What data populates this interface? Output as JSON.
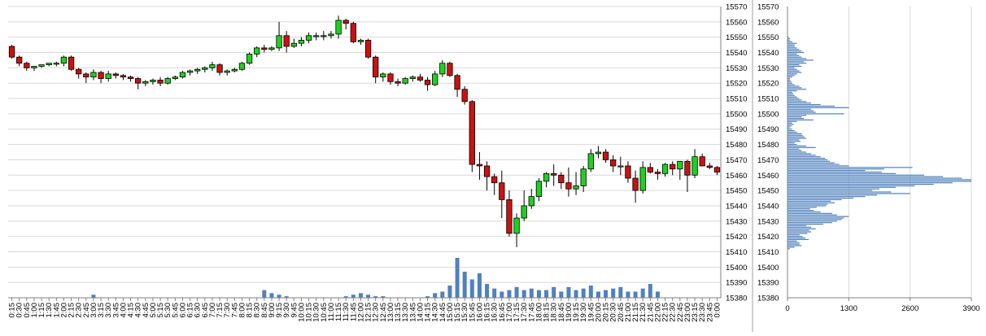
{
  "chart_data": [
    {
      "type": "candlestick",
      "title": "",
      "xlabel": "",
      "ylabel": "",
      "ylim": [
        15380,
        15570
      ],
      "y_ticks": [
        15380,
        15390,
        15400,
        15410,
        15420,
        15430,
        15440,
        15450,
        15460,
        15470,
        15480,
        15490,
        15500,
        15510,
        15520,
        15530,
        15540,
        15550,
        15560,
        15570
      ],
      "grid": true,
      "colors": {
        "up": "#1fd11f",
        "down": "#cc1111",
        "volume": "#4f81bd",
        "grid": "#d9d9d9"
      },
      "x": [
        "0:15",
        "0:30",
        "0:45",
        "1:00",
        "1:15",
        "1:30",
        "1:45",
        "2:00",
        "2:15",
        "2:30",
        "2:45",
        "3:00",
        "3:15",
        "3:30",
        "3:45",
        "4:00",
        "4:15",
        "4:30",
        "4:45",
        "5:00",
        "5:15",
        "5:30",
        "5:45",
        "6:00",
        "6:15",
        "6:30",
        "6:45",
        "7:00",
        "7:15",
        "7:30",
        "7:45",
        "8:00",
        "8:15",
        "8:30",
        "8:45",
        "9:00",
        "9:15",
        "9:30",
        "9:45",
        "10:00",
        "10:15",
        "10:30",
        "10:45",
        "11:00",
        "11:15",
        "11:30",
        "11:45",
        "12:00",
        "12:15",
        "12:30",
        "12:45",
        "13:00",
        "13:15",
        "13:30",
        "13:45",
        "14:00",
        "14:15",
        "14:30",
        "14:45",
        "15:00",
        "15:15",
        "15:30",
        "15:45",
        "16:00",
        "16:15",
        "16:30",
        "16:45",
        "17:00",
        "17:15",
        "17:30",
        "17:45",
        "18:00",
        "18:15",
        "18:30",
        "18:45",
        "19:00",
        "19:15",
        "19:30",
        "19:45",
        "20:00",
        "20:15",
        "20:30",
        "20:45",
        "21:00",
        "21:15",
        "21:30",
        "21:45",
        "22:00",
        "22:15",
        "22:30",
        "22:45",
        "23:00",
        "23:15",
        "23:30",
        "23:45",
        "0:00"
      ],
      "candles": [
        [
          15544,
          15545,
          15536,
          15537
        ],
        [
          15537,
          15538,
          15531,
          15533
        ],
        [
          15533,
          15534,
          15528,
          15530
        ],
        [
          15530,
          15531,
          15528,
          15531
        ],
        [
          15531,
          15532,
          15530,
          15532
        ],
        [
          15532,
          15533,
          15531,
          15533
        ],
        [
          15533,
          15534,
          15531,
          15533
        ],
        [
          15533,
          15538,
          15531,
          15537
        ],
        [
          15537,
          15538,
          15528,
          15529
        ],
        [
          15529,
          15530,
          15523,
          15526
        ],
        [
          15526,
          15527,
          15520,
          15524
        ],
        [
          15524,
          15529,
          15522,
          15527
        ],
        [
          15527,
          15528,
          15520,
          15523
        ],
        [
          15523,
          15528,
          15521,
          15526
        ],
        [
          15526,
          15527,
          15523,
          15525
        ],
        [
          15525,
          15526,
          15522,
          15524
        ],
        [
          15524,
          15525,
          15521,
          15523
        ],
        [
          15523,
          15524,
          15516,
          15520
        ],
        [
          15520,
          15522,
          15518,
          15521
        ],
        [
          15521,
          15523,
          15519,
          15522
        ],
        [
          15522,
          15524,
          15518,
          15520
        ],
        [
          15520,
          15524,
          15519,
          15523
        ],
        [
          15523,
          15525,
          15522,
          15524
        ],
        [
          15524,
          15528,
          15523,
          15527
        ],
        [
          15527,
          15529,
          15525,
          15528
        ],
        [
          15528,
          15530,
          15526,
          15529
        ],
        [
          15529,
          15531,
          15527,
          15530
        ],
        [
          15530,
          15534,
          15528,
          15532
        ],
        [
          15532,
          15533,
          15525,
          15527
        ],
        [
          15527,
          15529,
          15525,
          15528
        ],
        [
          15528,
          15530,
          15527,
          15529
        ],
        [
          15529,
          15534,
          15528,
          15533
        ],
        [
          15533,
          15540,
          15532,
          15539
        ],
        [
          15539,
          15544,
          15537,
          15543
        ],
        [
          15543,
          15545,
          15540,
          15542
        ],
        [
          15542,
          15544,
          15541,
          15543
        ],
        [
          15543,
          15560,
          15541,
          15551
        ],
        [
          15551,
          15554,
          15540,
          15544
        ],
        [
          15544,
          15549,
          15543,
          15546
        ],
        [
          15546,
          15550,
          15544,
          15548
        ],
        [
          15548,
          15553,
          15546,
          15551
        ],
        [
          15551,
          15553,
          15548,
          15551
        ],
        [
          15551,
          15554,
          15548,
          15551
        ],
        [
          15551,
          15554,
          15549,
          15552
        ],
        [
          15552,
          15564,
          15549,
          15561
        ],
        [
          15561,
          15562,
          15555,
          15559
        ],
        [
          15559,
          15560,
          15546,
          15547
        ],
        [
          15547,
          15549,
          15545,
          15548
        ],
        [
          15548,
          15549,
          15536,
          15537
        ],
        [
          15537,
          15538,
          15520,
          15524
        ],
        [
          15524,
          15527,
          15521,
          15526
        ],
        [
          15526,
          15527,
          15519,
          15521
        ],
        [
          15521,
          15523,
          15518,
          15520
        ],
        [
          15520,
          15524,
          15519,
          15523
        ],
        [
          15523,
          15525,
          15521,
          15524
        ],
        [
          15524,
          15526,
          15521,
          15522
        ],
        [
          15522,
          15524,
          15515,
          15519
        ],
        [
          15519,
          15528,
          15518,
          15526
        ],
        [
          15526,
          15535,
          15524,
          15533
        ],
        [
          15533,
          15534,
          15524,
          15525
        ],
        [
          15525,
          15526,
          15511,
          15516
        ],
        [
          15516,
          15518,
          15506,
          15508
        ],
        [
          15508,
          15509,
          15462,
          15467
        ],
        [
          15467,
          15475,
          15457,
          15466
        ],
        [
          15466,
          15469,
          15450,
          15459
        ],
        [
          15459,
          15461,
          15447,
          15455
        ],
        [
          15455,
          15463,
          15432,
          15444
        ],
        [
          15444,
          15450,
          15420,
          15422
        ],
        [
          15422,
          15435,
          15413,
          15432
        ],
        [
          15432,
          15450,
          15430,
          15440
        ],
        [
          15440,
          15451,
          15438,
          15446
        ],
        [
          15446,
          15458,
          15443,
          15456
        ],
        [
          15456,
          15462,
          15452,
          15461
        ],
        [
          15461,
          15467,
          15453,
          15460
        ],
        [
          15460,
          15462,
          15451,
          15455
        ],
        [
          15455,
          15465,
          15446,
          15451
        ],
        [
          15451,
          15462,
          15447,
          15453
        ],
        [
          15453,
          15466,
          15449,
          15464
        ],
        [
          15464,
          15477,
          15462,
          15474
        ],
        [
          15474,
          15479,
          15471,
          15475
        ],
        [
          15475,
          15477,
          15468,
          15470
        ],
        [
          15470,
          15473,
          15462,
          15466
        ],
        [
          15466,
          15472,
          15460,
          15466
        ],
        [
          15466,
          15469,
          15455,
          15458
        ],
        [
          15458,
          15463,
          15442,
          15450
        ],
        [
          15450,
          15469,
          15448,
          15465
        ],
        [
          15465,
          15468,
          15461,
          15462
        ],
        [
          15462,
          15464,
          15457,
          15461
        ],
        [
          15461,
          15468,
          15459,
          15467
        ],
        [
          15467,
          15469,
          15460,
          15464
        ],
        [
          15464,
          15468,
          15457,
          15469
        ],
        [
          15469,
          15470,
          15449,
          15460
        ],
        [
          15460,
          15477,
          15458,
          15472
        ],
        [
          15472,
          15474,
          15466,
          15466
        ],
        [
          15466,
          15468,
          15464,
          15465
        ],
        [
          15465,
          15466,
          15460,
          15462
        ]
      ],
      "volume": [
        0,
        0,
        0,
        0,
        0,
        0,
        0,
        0,
        0,
        0,
        0,
        2,
        0,
        0,
        0,
        0,
        0,
        0,
        0,
        0,
        0,
        0,
        0,
        0,
        0,
        0,
        0,
        0,
        0,
        0,
        0,
        0,
        0,
        0,
        5,
        3,
        2,
        1,
        0,
        0,
        0,
        0,
        0,
        0,
        0,
        1,
        2,
        3,
        2,
        1,
        1,
        0,
        0,
        0,
        0,
        0,
        1,
        3,
        4,
        8,
        26,
        17,
        12,
        16,
        9,
        6,
        4,
        5,
        7,
        5,
        6,
        5,
        5,
        7,
        4,
        7,
        5,
        6,
        8,
        4,
        5,
        6,
        7,
        4,
        4,
        6,
        9,
        4,
        0,
        0,
        0,
        0,
        0,
        0,
        0,
        0
      ]
    },
    {
      "type": "bar",
      "orientation": "horizontal",
      "title": "",
      "xlabel": "",
      "ylabel": "",
      "xlim": [
        0,
        3900
      ],
      "x_ticks": [
        0,
        1300,
        2600,
        3900
      ],
      "ylim": [
        15380,
        15570
      ],
      "y_ticks": [
        15380,
        15390,
        15400,
        15410,
        15420,
        15430,
        15440,
        15450,
        15460,
        15470,
        15480,
        15490,
        15500,
        15510,
        15520,
        15530,
        15540,
        15550,
        15560,
        15570
      ],
      "grid": true,
      "price_levels": {
        "start": 15412,
        "step": 1
      },
      "values": [
        50,
        150,
        300,
        260,
        250,
        200,
        450,
        380,
        320,
        260,
        420,
        500,
        460,
        600,
        500,
        400,
        760,
        950,
        1050,
        1150,
        1200,
        1300,
        1050,
        950,
        700,
        560,
        480,
        620,
        820,
        850,
        1000,
        920,
        1150,
        1400,
        1650,
        1900,
        2600,
        2200,
        1800,
        1950,
        2300,
        2700,
        3100,
        3500,
        3900,
        3900,
        3700,
        3300,
        2900,
        2300,
        2000,
        1650,
        2050,
        2650,
        1300,
        1100,
        1000,
        900,
        850,
        800,
        700,
        600,
        500,
        400,
        300,
        250,
        600,
        400,
        200,
        150,
        280,
        250,
        400,
        360,
        320,
        300,
        200,
        150,
        100,
        50,
        80,
        130,
        100,
        200,
        550,
        350,
        300,
        400,
        1200,
        600,
        550,
        500,
        1300,
        1000,
        700,
        500,
        400,
        300,
        250,
        200,
        150,
        120,
        100,
        200,
        400,
        300,
        250,
        150,
        100,
        80,
        60,
        50,
        100,
        150,
        200,
        300,
        250,
        200,
        150,
        300,
        250,
        400,
        350,
        550,
        400,
        300,
        250,
        200,
        350,
        300,
        250,
        200,
        150,
        150,
        200,
        100,
        50,
        50,
        30
      ]
    }
  ]
}
